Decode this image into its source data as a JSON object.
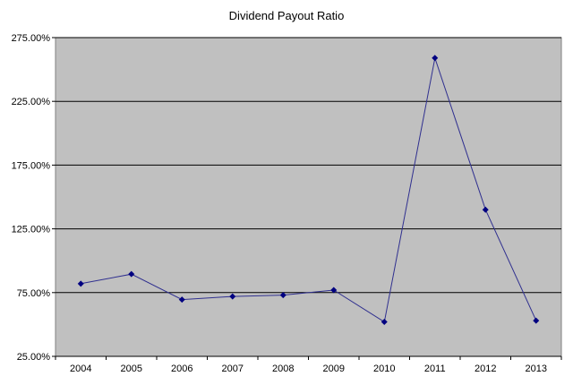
{
  "chart_data": {
    "type": "line",
    "title": "Dividend Payout Ratio",
    "xlabel": "",
    "ylabel": "",
    "categories": [
      "2004",
      "2005",
      "2006",
      "2007",
      "2008",
      "2009",
      "2010",
      "2011",
      "2012",
      "2013"
    ],
    "series": [
      {
        "values": [
          82,
          89.5,
          69.5,
          72,
          73,
          77,
          52,
          259,
          140,
          53
        ]
      }
    ],
    "ylim": [
      25,
      275
    ],
    "yticks": [
      25,
      75,
      125,
      175,
      225,
      275
    ],
    "ytick_labels": [
      "25.00%",
      "75.00%",
      "125.00%",
      "175.00%",
      "225.00%",
      "275.00%"
    ],
    "grid": "horizontal",
    "legend": "none",
    "colors": {
      "plot_background": "#c0c0c0",
      "line": "#2f2f8f",
      "marker": "#000080",
      "gridline": "#000000"
    }
  }
}
